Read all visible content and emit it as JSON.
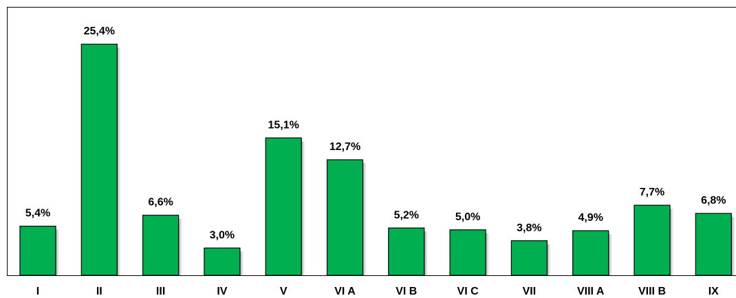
{
  "chart_data": {
    "type": "bar",
    "categories": [
      "I",
      "II",
      "III",
      "IV",
      "V",
      "VI A",
      "VI B",
      "VI C",
      "VII",
      "VIII A",
      "VIII B",
      "IX"
    ],
    "values": [
      5.4,
      25.4,
      6.6,
      3.0,
      15.1,
      12.7,
      5.2,
      5.0,
      3.8,
      4.9,
      7.7,
      6.8
    ],
    "value_labels": [
      "5,4%",
      "25,4%",
      "6,6%",
      "3,0%",
      "15,1%",
      "12,7%",
      "5,2%",
      "5,0%",
      "3,8%",
      "4,9%",
      "7,7%",
      "6,8%"
    ],
    "color": "#00b050",
    "ylim": [
      0,
      29.5
    ]
  }
}
